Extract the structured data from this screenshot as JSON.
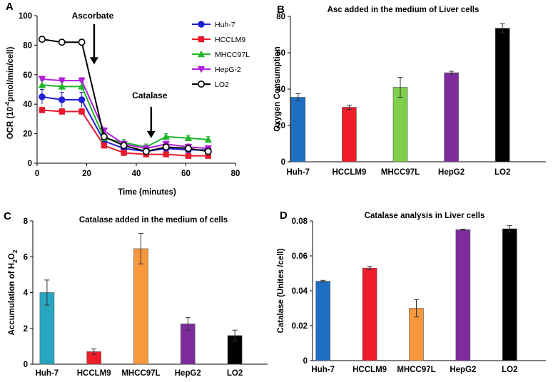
{
  "chart_data": [
    {
      "panel": "A",
      "type": "line",
      "title": "",
      "xlabel": "Time (minutes)",
      "ylabel_html": {
        "prefix": "OCR (10",
        "sup": "-4",
        "suffix": "pmol/min/cell)"
      },
      "xlim": [
        0,
        80
      ],
      "ylim": [
        0,
        100
      ],
      "xticks": [
        0,
        20,
        40,
        60,
        80
      ],
      "yticks": [
        0,
        20,
        40,
        60,
        80,
        100
      ],
      "x": [
        2,
        10,
        18,
        27,
        35,
        44,
        52,
        61,
        69
      ],
      "annotations": [
        {
          "text": "Ascorbate",
          "x": 23,
          "y_top": 100,
          "y_arrow": 67
        },
        {
          "text": "Catalase",
          "x": 46,
          "y_top": 44,
          "y_arrow": 17
        }
      ],
      "series": [
        {
          "name": "Huh-7",
          "color": "#1f1fd6",
          "marker": "circle-filled",
          "values": [
            45,
            43,
            43,
            15,
            10,
            8,
            10,
            9,
            9
          ],
          "errors": [
            5,
            5,
            5,
            2,
            2,
            2,
            2,
            2,
            2
          ]
        },
        {
          "name": "HCCLM9",
          "color": "#e8192c",
          "marker": "square",
          "values": [
            36,
            35,
            35,
            12,
            7,
            6,
            6,
            5,
            5
          ],
          "errors": [
            2,
            2,
            2,
            1,
            1,
            1,
            1,
            1,
            1
          ]
        },
        {
          "name": "MHCC97L",
          "color": "#1fb52b",
          "marker": "triangle-up",
          "values": [
            53,
            52,
            52,
            17,
            14,
            11,
            18,
            17,
            16
          ],
          "errors": [
            3,
            3,
            3,
            2,
            2,
            2,
            2,
            2,
            2
          ]
        },
        {
          "name": "HepG-2",
          "color": "#b01fd8",
          "marker": "triangle-down",
          "values": [
            57,
            56,
            56,
            22,
            13,
            10,
            13,
            11,
            10
          ],
          "errors": [
            2,
            2,
            2,
            2,
            2,
            2,
            2,
            2,
            2
          ]
        },
        {
          "name": "LO2",
          "color": "#000000",
          "marker": "circle-open",
          "values": [
            84,
            82,
            82,
            18,
            12,
            8,
            11,
            10,
            8
          ],
          "errors": [
            2,
            2,
            2,
            2,
            2,
            2,
            2,
            2,
            2
          ]
        }
      ]
    },
    {
      "panel": "B",
      "type": "bar",
      "title": "Asc added in the medium of Liver cells",
      "xlabel": "",
      "ylabel": "Oxygen Consumption",
      "ylim": [
        0,
        80
      ],
      "yticks": [
        0,
        20,
        40,
        60,
        80
      ],
      "ytick_labels": [
        "0",
        "20",
        "40",
        "60",
        "80"
      ],
      "categories": [
        "Huh-7",
        "HCCLM9",
        "MHCC97L",
        "HepG2",
        "LO2"
      ],
      "values": [
        35.5,
        30,
        41,
        49,
        73.5
      ],
      "errors": [
        2,
        1.2,
        5.5,
        0.8,
        2.5
      ],
      "colors": [
        "#1e6fc4",
        "#f01d2a",
        "#7fcf4a",
        "#7c2d9b",
        "#000000"
      ]
    },
    {
      "panel": "C",
      "type": "bar",
      "title": "Catalase added in the medium of cells",
      "xlabel": "",
      "ylabel_html": {
        "prefix": "Accumulation of H",
        "sub1": "2",
        "mid": "O",
        "sub2": "2"
      },
      "ylim": [
        0,
        8
      ],
      "yticks": [
        0,
        2,
        4,
        6,
        8
      ],
      "ytick_labels": [
        "0",
        "2",
        "4",
        "6",
        "8"
      ],
      "categories": [
        "Huh-7",
        "HCCLM9",
        "MHCC97L",
        "HepG2",
        "LO2"
      ],
      "values": [
        4.0,
        0.7,
        6.45,
        2.25,
        1.6
      ],
      "errors": [
        0.7,
        0.15,
        0.85,
        0.35,
        0.3
      ],
      "colors": [
        "#27a6c0",
        "#f01d2a",
        "#f8973c",
        "#7c2d9b",
        "#000000"
      ]
    },
    {
      "panel": "D",
      "type": "bar",
      "title": "Catalase analysis in Liver cells",
      "xlabel": "",
      "ylabel": "Catalase (Unites /cell)",
      "ylim": [
        0,
        0.08
      ],
      "yticks": [
        0,
        0.02,
        0.04,
        0.06,
        0.08
      ],
      "ytick_labels": [
        "0",
        "0.02",
        "0.04",
        "0.06",
        "0.08"
      ],
      "categories": [
        "Huh-7",
        "HCCLM9",
        "MHCC97L",
        "HepG2",
        "LO2"
      ],
      "values": [
        0.0455,
        0.053,
        0.03,
        0.075,
        0.0755
      ],
      "errors": [
        0.0005,
        0.001,
        0.005,
        0.0003,
        0.0018
      ],
      "colors": [
        "#1e6fc4",
        "#f01d2a",
        "#f8973c",
        "#7c2d9b",
        "#000000"
      ]
    }
  ]
}
